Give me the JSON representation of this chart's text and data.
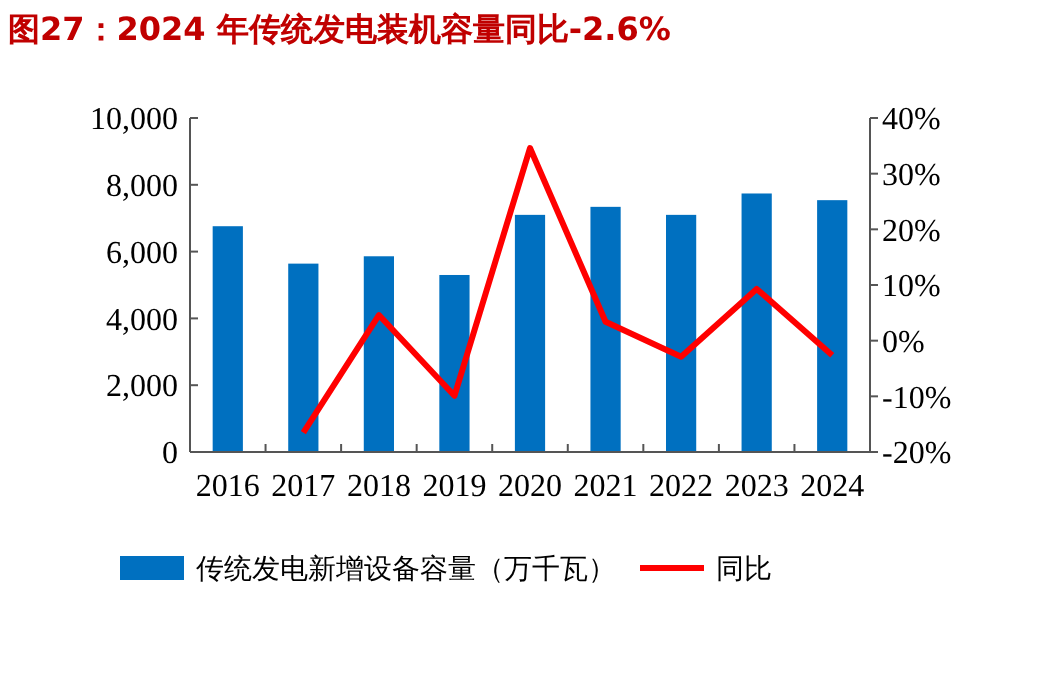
{
  "chart_data": {
    "type": "bar",
    "title": "图27：2024 年传统发电装机容量同比-2.6%",
    "categories": [
      "2016",
      "2017",
      "2018",
      "2019",
      "2020",
      "2021",
      "2022",
      "2023",
      "2024"
    ],
    "series": [
      {
        "name": "传统发电新增设备容量（万千瓦）",
        "color": "#0070c0",
        "values": [
          6760,
          5640,
          5860,
          5300,
          7100,
          7340,
          7100,
          7740,
          7540
        ]
      },
      {
        "name": "同比",
        "type": "line",
        "axis": "y2",
        "color": "#ff0000",
        "values": [
          null,
          -16.5,
          4.6,
          -9.9,
          34.6,
          3.4,
          -2.9,
          9.3,
          -2.6
        ]
      }
    ],
    "ylim": [
      0,
      10000
    ],
    "yticks": [
      {
        "value": 0,
        "label": "0"
      },
      {
        "value": 2000,
        "label": "2,000"
      },
      {
        "value": 4000,
        "label": "4,000"
      },
      {
        "value": 6000,
        "label": "6,000"
      },
      {
        "value": 8000,
        "label": "8,000"
      },
      {
        "value": 10000,
        "label": "10,000"
      }
    ],
    "y2lim": [
      -20,
      40
    ],
    "y2ticks": [
      {
        "value": -20,
        "label": "-20%"
      },
      {
        "value": -10,
        "label": "-10%"
      },
      {
        "value": 0,
        "label": "0%"
      },
      {
        "value": 10,
        "label": "10%"
      },
      {
        "value": 20,
        "label": "20%"
      },
      {
        "value": 30,
        "label": "30%"
      },
      {
        "value": 40,
        "label": "40%"
      }
    ],
    "legend": "bottom",
    "grid": false
  }
}
